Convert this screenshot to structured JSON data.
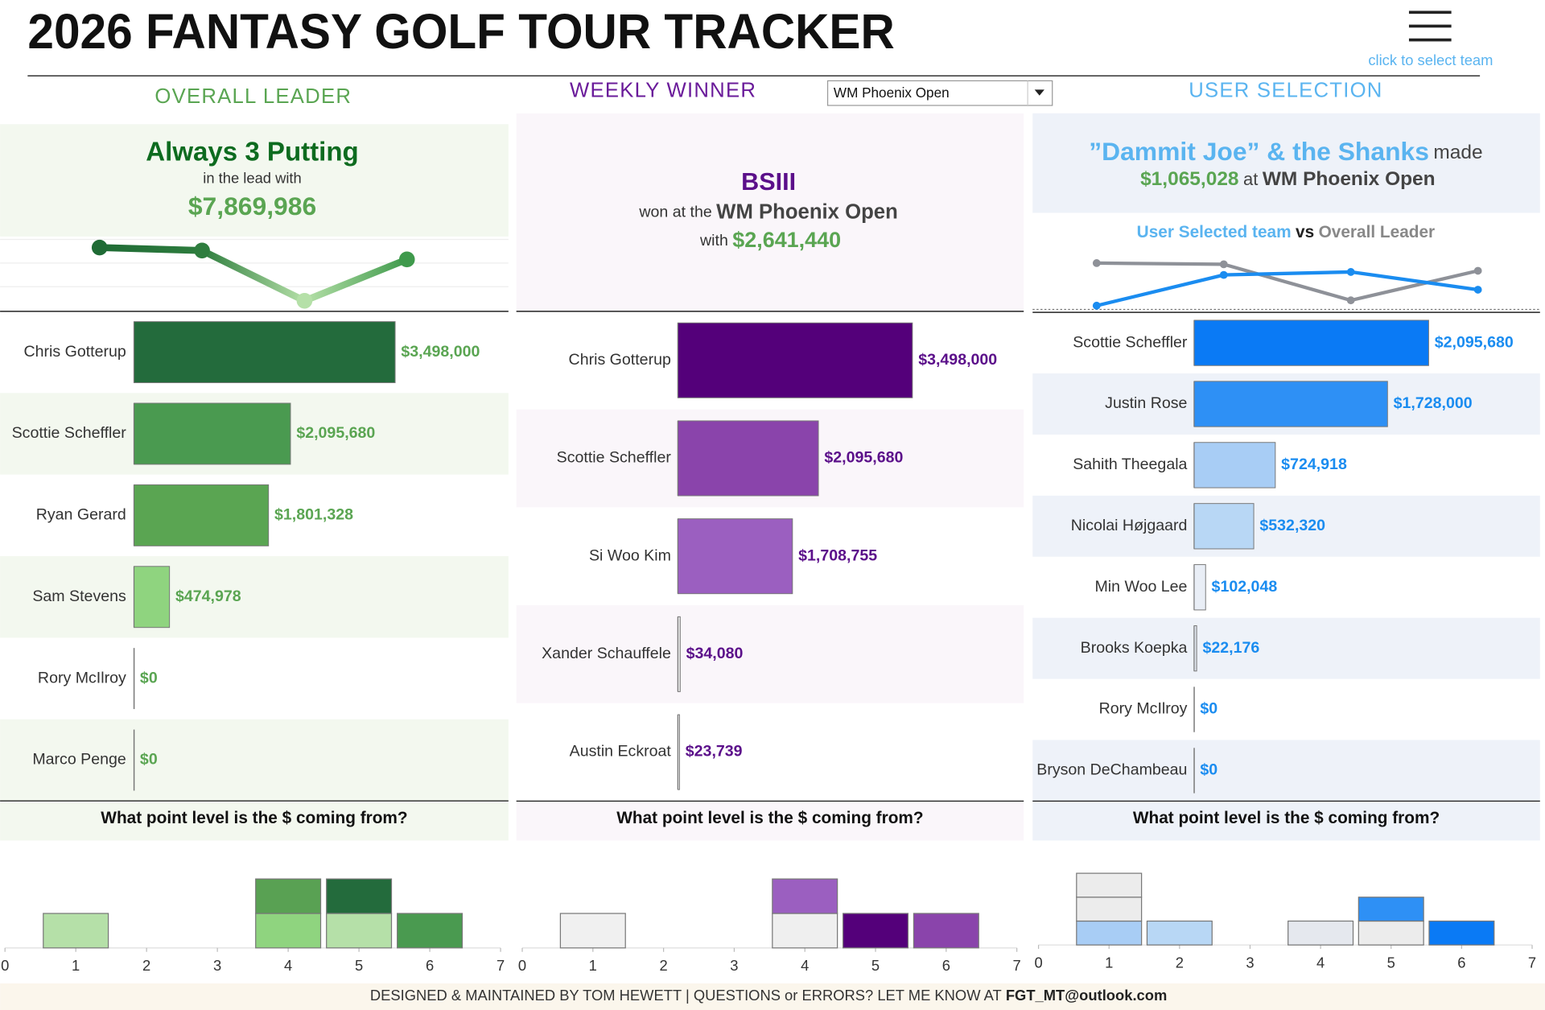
{
  "header": {
    "title": "2026 FANTASY GOLF TOUR TRACKER",
    "menu_hint": "click to select team",
    "event_select": "WM Phoenix Open"
  },
  "panels": [
    {
      "heading": "OVERALL LEADER",
      "team": "Always 3 Putting",
      "caption": "in the lead with",
      "amount": "$7,869,986"
    },
    {
      "heading": "WEEKLY WINNER",
      "team": "BSIII",
      "caption": "won at the",
      "event": "WM Phoenix Open",
      "with": "with",
      "amount": "$2,641,440"
    },
    {
      "heading": "USER SELECTION",
      "team": "”Dammit Joe” & the Shanks",
      "verb": "made",
      "amount": "$1,065,028",
      "at": "at",
      "event": "WM Phoenix Open"
    }
  ],
  "chart_data": [
    {
      "type": "line",
      "values": [
        8.5,
        8.1,
        1.3,
        6.9
      ],
      "ylim": [
        0,
        10
      ],
      "gradient": [
        "#1f6b35",
        "#2e7d3e",
        "#b5e0a8",
        "#3f9a4c"
      ]
    },
    {
      "type": "hbar",
      "categories": [
        "Chris Gotterup",
        "Scottie Scheffler",
        "Ryan Gerard",
        "Sam Stevens",
        "Rory McIlroy",
        "Marco Penge"
      ],
      "values": [
        3498000,
        2095680,
        1801328,
        474978,
        0,
        0
      ],
      "value_labels": [
        "$3,498,000",
        "$2,095,680",
        "$1,801,328",
        "$474,978",
        "$0",
        "$0"
      ],
      "colors": [
        "#236b3c",
        "#4a9a50",
        "#5aa552",
        "#8fd47f",
        "#b5e0a8",
        "#b5e0a8"
      ]
    },
    {
      "type": "stacked_bar",
      "title": "What point level is the $ coming from?",
      "x": [
        1,
        4,
        5,
        6
      ],
      "segments": [
        [
          {
            "value": 1,
            "color": "#b5e0a8"
          }
        ],
        [
          {
            "value": 1,
            "color": "#8fd47f"
          },
          {
            "value": 1,
            "color": "#59a153"
          }
        ],
        [
          {
            "value": 1,
            "color": "#b5e0a8"
          },
          {
            "value": 1,
            "color": "#236b3c"
          }
        ],
        [
          {
            "value": 1,
            "color": "#4a9a50"
          }
        ]
      ],
      "xlim": [
        0,
        7
      ],
      "xticks": [
        0,
        1,
        2,
        3,
        4,
        5,
        6,
        7
      ],
      "ylim": [
        0,
        3
      ]
    },
    {
      "type": "hbar",
      "categories": [
        "Chris Gotterup",
        "Scottie Scheffler",
        "Si Woo Kim",
        "Xander Schauffele",
        "Austin Eckroat"
      ],
      "values": [
        3498000,
        2095680,
        1708755,
        34080,
        23739
      ],
      "value_labels": [
        "$3,498,000",
        "$2,095,680",
        "$1,708,755",
        "$34,080",
        "$23,739"
      ],
      "colors": [
        "#54007a",
        "#8a44ab",
        "#9b5fc0",
        "#e6e6e6",
        "#e6e6e6"
      ]
    },
    {
      "type": "stacked_bar",
      "title": "What point level is the $ coming from?",
      "x": [
        1,
        4,
        5,
        6
      ],
      "segments": [
        [
          {
            "value": 1,
            "color": "#f0f0f0"
          }
        ],
        [
          {
            "value": 1,
            "color": "#efefef"
          },
          {
            "value": 1,
            "color": "#9b5fc0"
          }
        ],
        [
          {
            "value": 1,
            "color": "#54007a"
          }
        ],
        [
          {
            "value": 1,
            "color": "#8a44ab"
          }
        ]
      ],
      "xlim": [
        0,
        7
      ],
      "xticks": [
        0,
        1,
        2,
        3,
        4,
        5,
        6,
        7
      ],
      "ylim": [
        0,
        3
      ]
    },
    {
      "type": "line",
      "ylim": [
        0,
        10
      ],
      "joiner": "vs",
      "series": [
        {
          "name": "User Selected team",
          "color": "#1a8cf0",
          "values": [
            0.8,
            6,
            6.5,
            3.5
          ]
        },
        {
          "name": "Overall Leader",
          "color": "#8e9198",
          "values": [
            8,
            7.8,
            1.7,
            6.7
          ]
        }
      ]
    },
    {
      "type": "hbar",
      "categories": [
        "Scottie Scheffler",
        "Justin Rose",
        "Sahith Theegala",
        "Nicolai Højgaard",
        "Min Woo Lee",
        "Brooks Koepka",
        "Rory McIlroy",
        "Bryson DeChambeau"
      ],
      "values": [
        2095680,
        1728000,
        724918,
        532320,
        102048,
        22176,
        0,
        0
      ],
      "value_labels": [
        "$2,095,680",
        "$1,728,000",
        "$724,918",
        "$532,320",
        "$102,048",
        "$22,176",
        "$0",
        "$0"
      ],
      "colors": [
        "#0a7af5",
        "#2e90f5",
        "#a8cdf5",
        "#b8d7f5",
        "#e9eef6",
        "#dde3ec",
        "#dde3ec",
        "#dde3ec"
      ]
    },
    {
      "type": "stacked_bar",
      "title": "What point level is the $ coming from?",
      "x": [
        1,
        2,
        4,
        5,
        6
      ],
      "segments": [
        [
          {
            "value": 1,
            "color": "#a8cdf5"
          },
          {
            "value": 1,
            "color": "#ececec"
          },
          {
            "value": 1,
            "color": "#ececec"
          }
        ],
        [
          {
            "value": 1,
            "color": "#b8d7f5"
          }
        ],
        [
          {
            "value": 1,
            "color": "#e5e8ee"
          }
        ],
        [
          {
            "value": 1,
            "color": "#ececec"
          },
          {
            "value": 1,
            "color": "#2e90f5"
          }
        ],
        [
          {
            "value": 1,
            "color": "#0a7af5"
          }
        ]
      ],
      "xlim": [
        0,
        7
      ],
      "xticks": [
        0,
        1,
        2,
        3,
        4,
        5,
        6,
        7
      ],
      "ylim": [
        0,
        4
      ]
    }
  ],
  "footer": {
    "text": "DESIGNED & MAINTAINED BY TOM HEWETT  |  QUESTIONS or ERRORS? LET ME KNOW AT",
    "email": "FGT_MT@outlook.com"
  }
}
